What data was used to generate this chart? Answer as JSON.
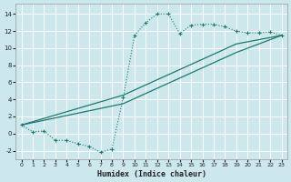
{
  "xlabel": "Humidex (Indice chaleur)",
  "background_color": "#cce8ed",
  "line_color": "#1a7a6e",
  "grid_color": "#ffffff",
  "xlim": [
    -0.5,
    23.5
  ],
  "ylim": [
    -3.0,
    15.2
  ],
  "xticks": [
    0,
    1,
    2,
    3,
    4,
    5,
    6,
    7,
    8,
    9,
    10,
    11,
    12,
    13,
    14,
    15,
    16,
    17,
    18,
    19,
    20,
    21,
    22,
    23
  ],
  "yticks": [
    -2,
    0,
    2,
    4,
    6,
    8,
    10,
    12,
    14
  ],
  "line1_x": [
    0,
    1,
    2,
    3,
    4,
    5,
    6,
    7,
    8,
    9,
    10,
    11,
    12,
    13,
    14,
    15,
    16,
    17,
    18,
    19,
    20,
    21,
    22,
    23
  ],
  "line1_y": [
    1.0,
    0.2,
    0.3,
    -0.8,
    -0.8,
    -1.2,
    -1.5,
    -2.2,
    -1.8,
    4.2,
    11.5,
    13.0,
    14.0,
    14.0,
    11.7,
    12.7,
    12.8,
    12.8,
    12.5,
    12.0,
    11.8,
    11.8,
    11.9,
    11.5
  ],
  "line2_x": [
    0,
    9,
    14,
    19,
    23
  ],
  "line2_y": [
    1.0,
    3.5,
    6.5,
    9.5,
    11.5
  ],
  "line3_x": [
    0,
    9,
    14,
    19,
    23
  ],
  "line3_y": [
    1.0,
    4.5,
    7.5,
    10.5,
    11.5
  ]
}
